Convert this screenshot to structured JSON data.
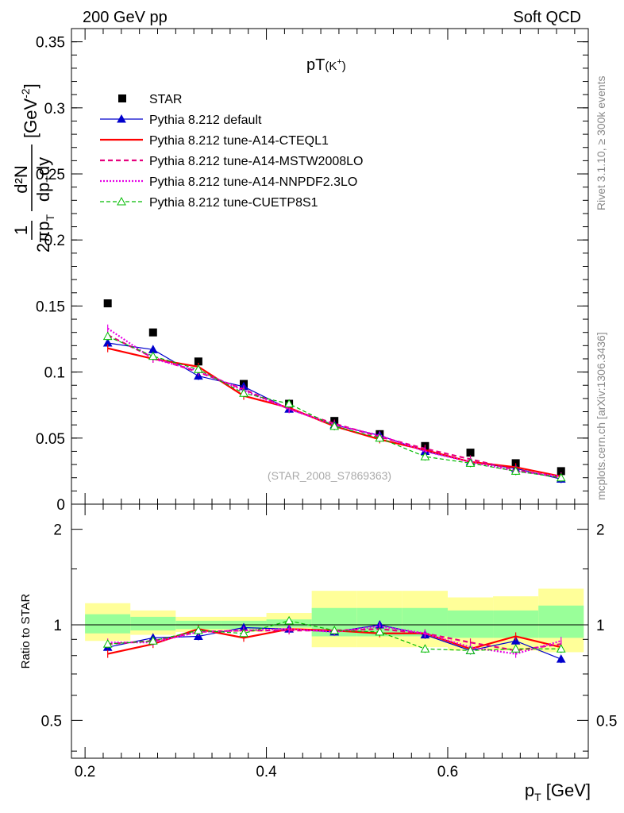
{
  "header": {
    "left": "200 GeV pp",
    "right": "Soft QCD"
  },
  "side_labels": {
    "rivet": "Rivet 3.1.10, ≥ 300k events",
    "mcplots": "mcplots.cern.ch [arXiv:1306.3436]"
  },
  "colors": {
    "star": "#000000",
    "default": "#0000cc",
    "cteql1": "#ff0000",
    "mstw": "#e6007e",
    "nnpdf": "#e600e6",
    "cuetp8s1": "#00bb00",
    "band_yellow": "#ffff99",
    "band_green": "#99ff99"
  },
  "chart_data": [
    {
      "type": "line",
      "title": "pT(K+)",
      "title_main": "pT",
      "title_particle": "(K",
      "title_charge": "+",
      "title_close": ")",
      "ylabel": "1/(2πp_T) d²N/(dp_T dy) [GeV⁻²]",
      "ylabel_parts": {
        "frac1_num": "1",
        "frac1_den": "2πp",
        "frac1_sub": "T",
        "frac2_num": "d²N",
        "frac2_den": "dp",
        "frac2_sub": "T",
        "frac2_tail": "dy",
        "unit": "[GeV",
        "unit_exp": "-2",
        "unit_close": "]"
      },
      "watermark": "(STAR_2008_S7869363)",
      "ylim": [
        0,
        0.36
      ],
      "yticks": [
        0,
        0.05,
        0.1,
        0.15,
        0.2,
        0.25,
        0.3,
        0.35
      ],
      "ytick_labels": [
        "0",
        "0.05",
        "0.1",
        "0.15",
        "0.2",
        "0.25",
        "0.3",
        "0.35"
      ],
      "x": [
        0.225,
        0.275,
        0.325,
        0.375,
        0.425,
        0.475,
        0.525,
        0.575,
        0.625,
        0.675,
        0.725
      ],
      "legend_position": "top-left",
      "series": [
        {
          "key": "star",
          "name": "STAR",
          "values": [
            0.152,
            0.13,
            0.108,
            0.091,
            0.076,
            0.063,
            0.053,
            0.044,
            0.039,
            0.031,
            0.025
          ]
        },
        {
          "key": "default",
          "name": "Pythia 8.212 default",
          "values": [
            0.122,
            0.117,
            0.097,
            0.089,
            0.072,
            0.06,
            0.052,
            0.04,
            0.032,
            0.027,
            0.019
          ]
        },
        {
          "key": "cteql1",
          "name": "Pythia 8.212 tune-A14-CTEQL1",
          "values": [
            0.118,
            0.11,
            0.104,
            0.082,
            0.073,
            0.059,
            0.049,
            0.041,
            0.032,
            0.028,
            0.021
          ]
        },
        {
          "key": "mstw",
          "name": "Pythia 8.212 tune-A14-MSTW2008LO",
          "values": [
            0.128,
            0.111,
            0.1,
            0.087,
            0.072,
            0.061,
            0.051,
            0.042,
            0.034,
            0.026,
            0.02
          ]
        },
        {
          "key": "nnpdf",
          "name": "Pythia 8.212 tune-A14-NNPDF2.3LO",
          "values": [
            0.133,
            0.11,
            0.101,
            0.086,
            0.072,
            0.06,
            0.052,
            0.04,
            0.032,
            0.025,
            0.021
          ]
        },
        {
          "key": "cuetp8s1",
          "name": "Pythia 8.212 tune-CUETP8S1",
          "values": [
            0.127,
            0.112,
            0.102,
            0.084,
            0.076,
            0.059,
            0.05,
            0.036,
            0.031,
            0.025,
            0.02
          ]
        }
      ]
    },
    {
      "type": "line",
      "ylabel": "Ratio to STAR",
      "xlabel": "p_T [GeV]",
      "xlabel_parts": {
        "p": "p",
        "sub": "T",
        "unit": " [GeV]"
      },
      "xlim": [
        0.185,
        0.755
      ],
      "xticks": [
        0.2,
        0.4,
        0.6
      ],
      "xtick_labels": [
        "0.2",
        "0.4",
        "0.6"
      ],
      "ylim_log": [
        0.38,
        2.4
      ],
      "yticks": [
        0.5,
        1,
        2
      ],
      "ytick_labels": [
        "0.5",
        "1",
        "2"
      ],
      "band_bins": [
        0.2,
        0.25,
        0.3,
        0.35,
        0.4,
        0.45,
        0.5,
        0.55,
        0.6,
        0.65,
        0.7,
        0.75
      ],
      "band_yellow": [
        [
          0.89,
          1.17
        ],
        [
          0.93,
          1.11
        ],
        [
          0.95,
          1.06
        ],
        [
          0.95,
          1.06
        ],
        [
          0.96,
          1.09
        ],
        [
          0.85,
          1.28
        ],
        [
          0.85,
          1.28
        ],
        [
          0.85,
          1.28
        ],
        [
          0.83,
          1.22
        ],
        [
          0.83,
          1.23
        ],
        [
          0.82,
          1.3
        ]
      ],
      "band_green": [
        [
          0.94,
          1.08
        ],
        [
          0.96,
          1.06
        ],
        [
          0.97,
          1.03
        ],
        [
          0.97,
          1.03
        ],
        [
          0.98,
          1.04
        ],
        [
          0.92,
          1.13
        ],
        [
          0.92,
          1.13
        ],
        [
          0.92,
          1.13
        ],
        [
          0.91,
          1.11
        ],
        [
          0.91,
          1.11
        ],
        [
          0.91,
          1.15
        ]
      ],
      "x": [
        0.225,
        0.275,
        0.325,
        0.375,
        0.425,
        0.475,
        0.525,
        0.575,
        0.625,
        0.675,
        0.725
      ],
      "series": [
        {
          "key": "default",
          "name": "Pythia 8.212 default",
          "values": [
            0.85,
            0.91,
            0.92,
            0.98,
            0.97,
            0.95,
            1.0,
            0.93,
            0.83,
            0.89,
            0.78
          ]
        },
        {
          "key": "cteql1",
          "name": "Pythia 8.212 tune-A14-CTEQL1",
          "values": [
            0.81,
            0.87,
            0.97,
            0.91,
            0.97,
            0.96,
            0.94,
            0.94,
            0.84,
            0.92,
            0.85
          ]
        },
        {
          "key": "mstw",
          "name": "Pythia 8.212 tune-A14-MSTW2008LO",
          "values": [
            0.87,
            0.89,
            0.95,
            0.96,
            0.96,
            0.96,
            0.97,
            0.94,
            0.88,
            0.83,
            0.87
          ]
        },
        {
          "key": "nnpdf",
          "name": "Pythia 8.212 tune-A14-NNPDF2.3LO",
          "values": [
            0.88,
            0.88,
            0.95,
            0.96,
            0.97,
            0.95,
            0.99,
            0.94,
            0.85,
            0.81,
            0.89
          ]
        },
        {
          "key": "cuetp8s1",
          "name": "Pythia 8.212 tune-CUETP8S1",
          "values": [
            0.87,
            0.89,
            0.96,
            0.94,
            1.03,
            0.96,
            0.95,
            0.84,
            0.83,
            0.84,
            0.84
          ]
        }
      ]
    }
  ]
}
